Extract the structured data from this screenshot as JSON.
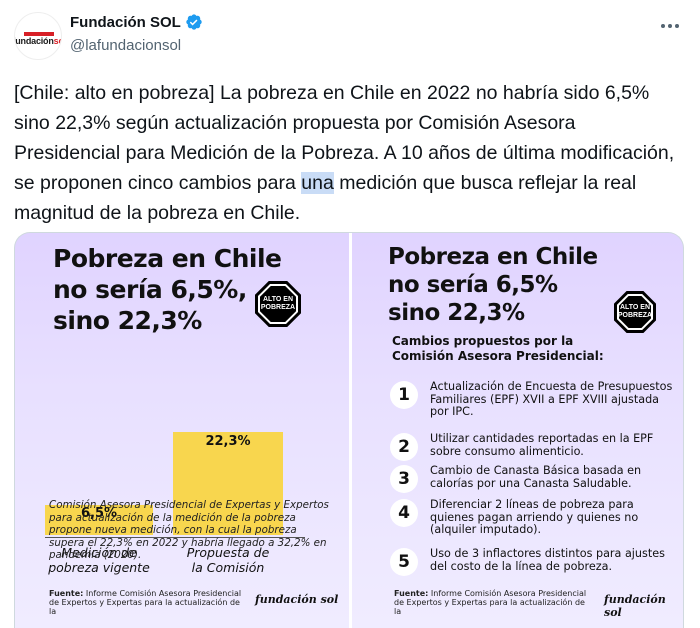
{
  "tweet": {
    "author_name": "Fundación SOL",
    "handle": "@lafundacionsol",
    "avatar_text_a": "Fundación",
    "avatar_text_b": "sol",
    "text_before": "[Chile: alto en pobreza] La pobreza en Chile en 2022 no habría sido 6,5% sino 22,3% según actualización propuesta por Comisión Asesora Presidencial para Medición de la Pobreza. A 10 años de última modificación, se proponen cinco cambios para ",
    "text_highlight": "una",
    "text_after": " medición que busca reflejar la real magnitud de la pobreza en Chile.",
    "verified_color": "#1d9bf0"
  },
  "left_panel": {
    "title_line1": "Pobreza en Chile",
    "title_line2": "no sería 6,5%,",
    "title_line3": "sino 22,3%",
    "stop_line1": "ALTO EN",
    "stop_line2": "POBREZA",
    "note": "Comisión Asesora Presidencial de Expertas y Expertos para actualización de la medición de la pobreza propone nueva medición, con la cual la pobreza supera el 22,3% en 2022 y habría llegado a 32,2% en pandemia (2020).",
    "fuente_label": "Fuente:",
    "fuente_text": "Informe Comisión Asesora Presidencial de Expertos y Expertas para la actualización de la",
    "brand": "fundación sol"
  },
  "chart_data": {
    "type": "bar",
    "categories": [
      "Medición de pobreza vigente",
      "Propuesta de la Comisión"
    ],
    "values": [
      6.5,
      22.3
    ],
    "value_labels": [
      "6,5%",
      "22,3%"
    ],
    "category_lines": [
      [
        "Medición de",
        "pobreza vigente"
      ],
      [
        "Propuesta de",
        "la Comisión"
      ]
    ],
    "ylim": [
      0,
      25
    ],
    "bar_color": "#f8d64e"
  },
  "right_panel": {
    "title_line1": "Pobreza en Chile",
    "title_line2": "no sería 6,5%",
    "title_line3": "sino 22,3%",
    "stop_line1": "ALTO EN",
    "stop_line2": "POBREZA",
    "subhead_line1": "Cambios propuestos por la",
    "subhead_line2": "Comisión Asesora Presidencial:",
    "items": [
      {
        "num": "1",
        "text": "Actualización de Encuesta de Presupuestos Familiares (EPF) XVII a EPF XVIII ajustada por IPC."
      },
      {
        "num": "2",
        "text": "Utilizar cantidades reportadas en la EPF sobre consumo alimenticio."
      },
      {
        "num": "3",
        "text": "Cambio de Canasta Básica basada en calorías por una Canasta Saludable."
      },
      {
        "num": "4",
        "text": "Diferenciar 2 líneas de pobreza para quienes pagan arriendo y quienes no (alquiler imputado)."
      },
      {
        "num": "5",
        "text": "Uso de 3 inflactores distintos para ajustes del costo de la línea de pobreza."
      }
    ],
    "fuente_label": "Fuente:",
    "fuente_text": "Informe Comisión Asesora Presidencial de Expertos y Expertas para la actualización de la",
    "brand": "fundación sol"
  }
}
